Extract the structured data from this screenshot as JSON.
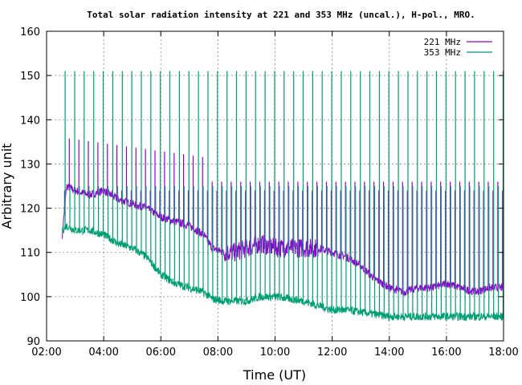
{
  "chart_data": {
    "type": "line",
    "title": "Total solar radiation intensity at 221 and 353 MHz (uncal.), H-pol., MRO.",
    "xlabel": "Time (UT)",
    "ylabel": "Arbitrary unit",
    "xlim": [
      2.0,
      18.0
    ],
    "ylim": [
      90,
      160
    ],
    "x_ticks": [
      "02:00",
      "04:00",
      "06:00",
      "08:00",
      "10:00",
      "12:00",
      "14:00",
      "16:00",
      "18:00"
    ],
    "y_ticks": [
      "90",
      "100",
      "110",
      "120",
      "130",
      "140",
      "150",
      "160"
    ],
    "grid": true,
    "legend_position": "top-right",
    "series": [
      {
        "name": "221 MHz",
        "color": "#9400d3",
        "x": [
          2.55,
          2.7,
          3.0,
          3.5,
          4.0,
          4.5,
          5.0,
          5.5,
          6.0,
          6.5,
          7.0,
          7.5,
          7.8,
          8.2,
          8.6,
          9.0,
          9.5,
          10.0,
          10.5,
          11.0,
          11.5,
          12.0,
          12.5,
          13.0,
          13.5,
          14.0,
          14.5,
          15.0,
          15.5,
          16.0,
          16.5,
          17.0,
          17.5,
          18.0
        ],
        "values": [
          114,
          125,
          124,
          123,
          124,
          122,
          121,
          120,
          118,
          117,
          116,
          114,
          111,
          110,
          110,
          111,
          112,
          111,
          111,
          111,
          111,
          110,
          109,
          107,
          104,
          102,
          101,
          102,
          102,
          103,
          102,
          101,
          102,
          102
        ],
        "calibration_spikes": {
          "low": 124,
          "high": 136,
          "high_until": 7.5,
          "late_high": 126
        }
      },
      {
        "name": "353 MHz",
        "color": "#009e73",
        "x": [
          2.55,
          2.7,
          3.0,
          3.5,
          4.0,
          4.5,
          5.0,
          5.5,
          6.0,
          6.5,
          7.0,
          7.5,
          7.8,
          8.2,
          8.6,
          9.0,
          9.5,
          10.0,
          10.5,
          11.0,
          11.5,
          12.0,
          12.5,
          13.0,
          13.5,
          14.0,
          14.5,
          15.0,
          15.5,
          16.0,
          16.5,
          17.0,
          17.5,
          18.0
        ],
        "values": [
          115,
          116,
          115,
          115,
          114,
          112,
          111,
          109,
          105,
          103,
          102,
          101,
          99.5,
          99,
          99,
          99,
          100,
          100,
          99.5,
          99,
          98,
          97,
          97,
          96.5,
          96,
          95.5,
          95.5,
          95.5,
          95.5,
          95.5,
          95.5,
          95.5,
          95.5,
          95.5
        ],
        "calibration_spikes": {
          "low": 125,
          "high": 151
        }
      }
    ]
  }
}
